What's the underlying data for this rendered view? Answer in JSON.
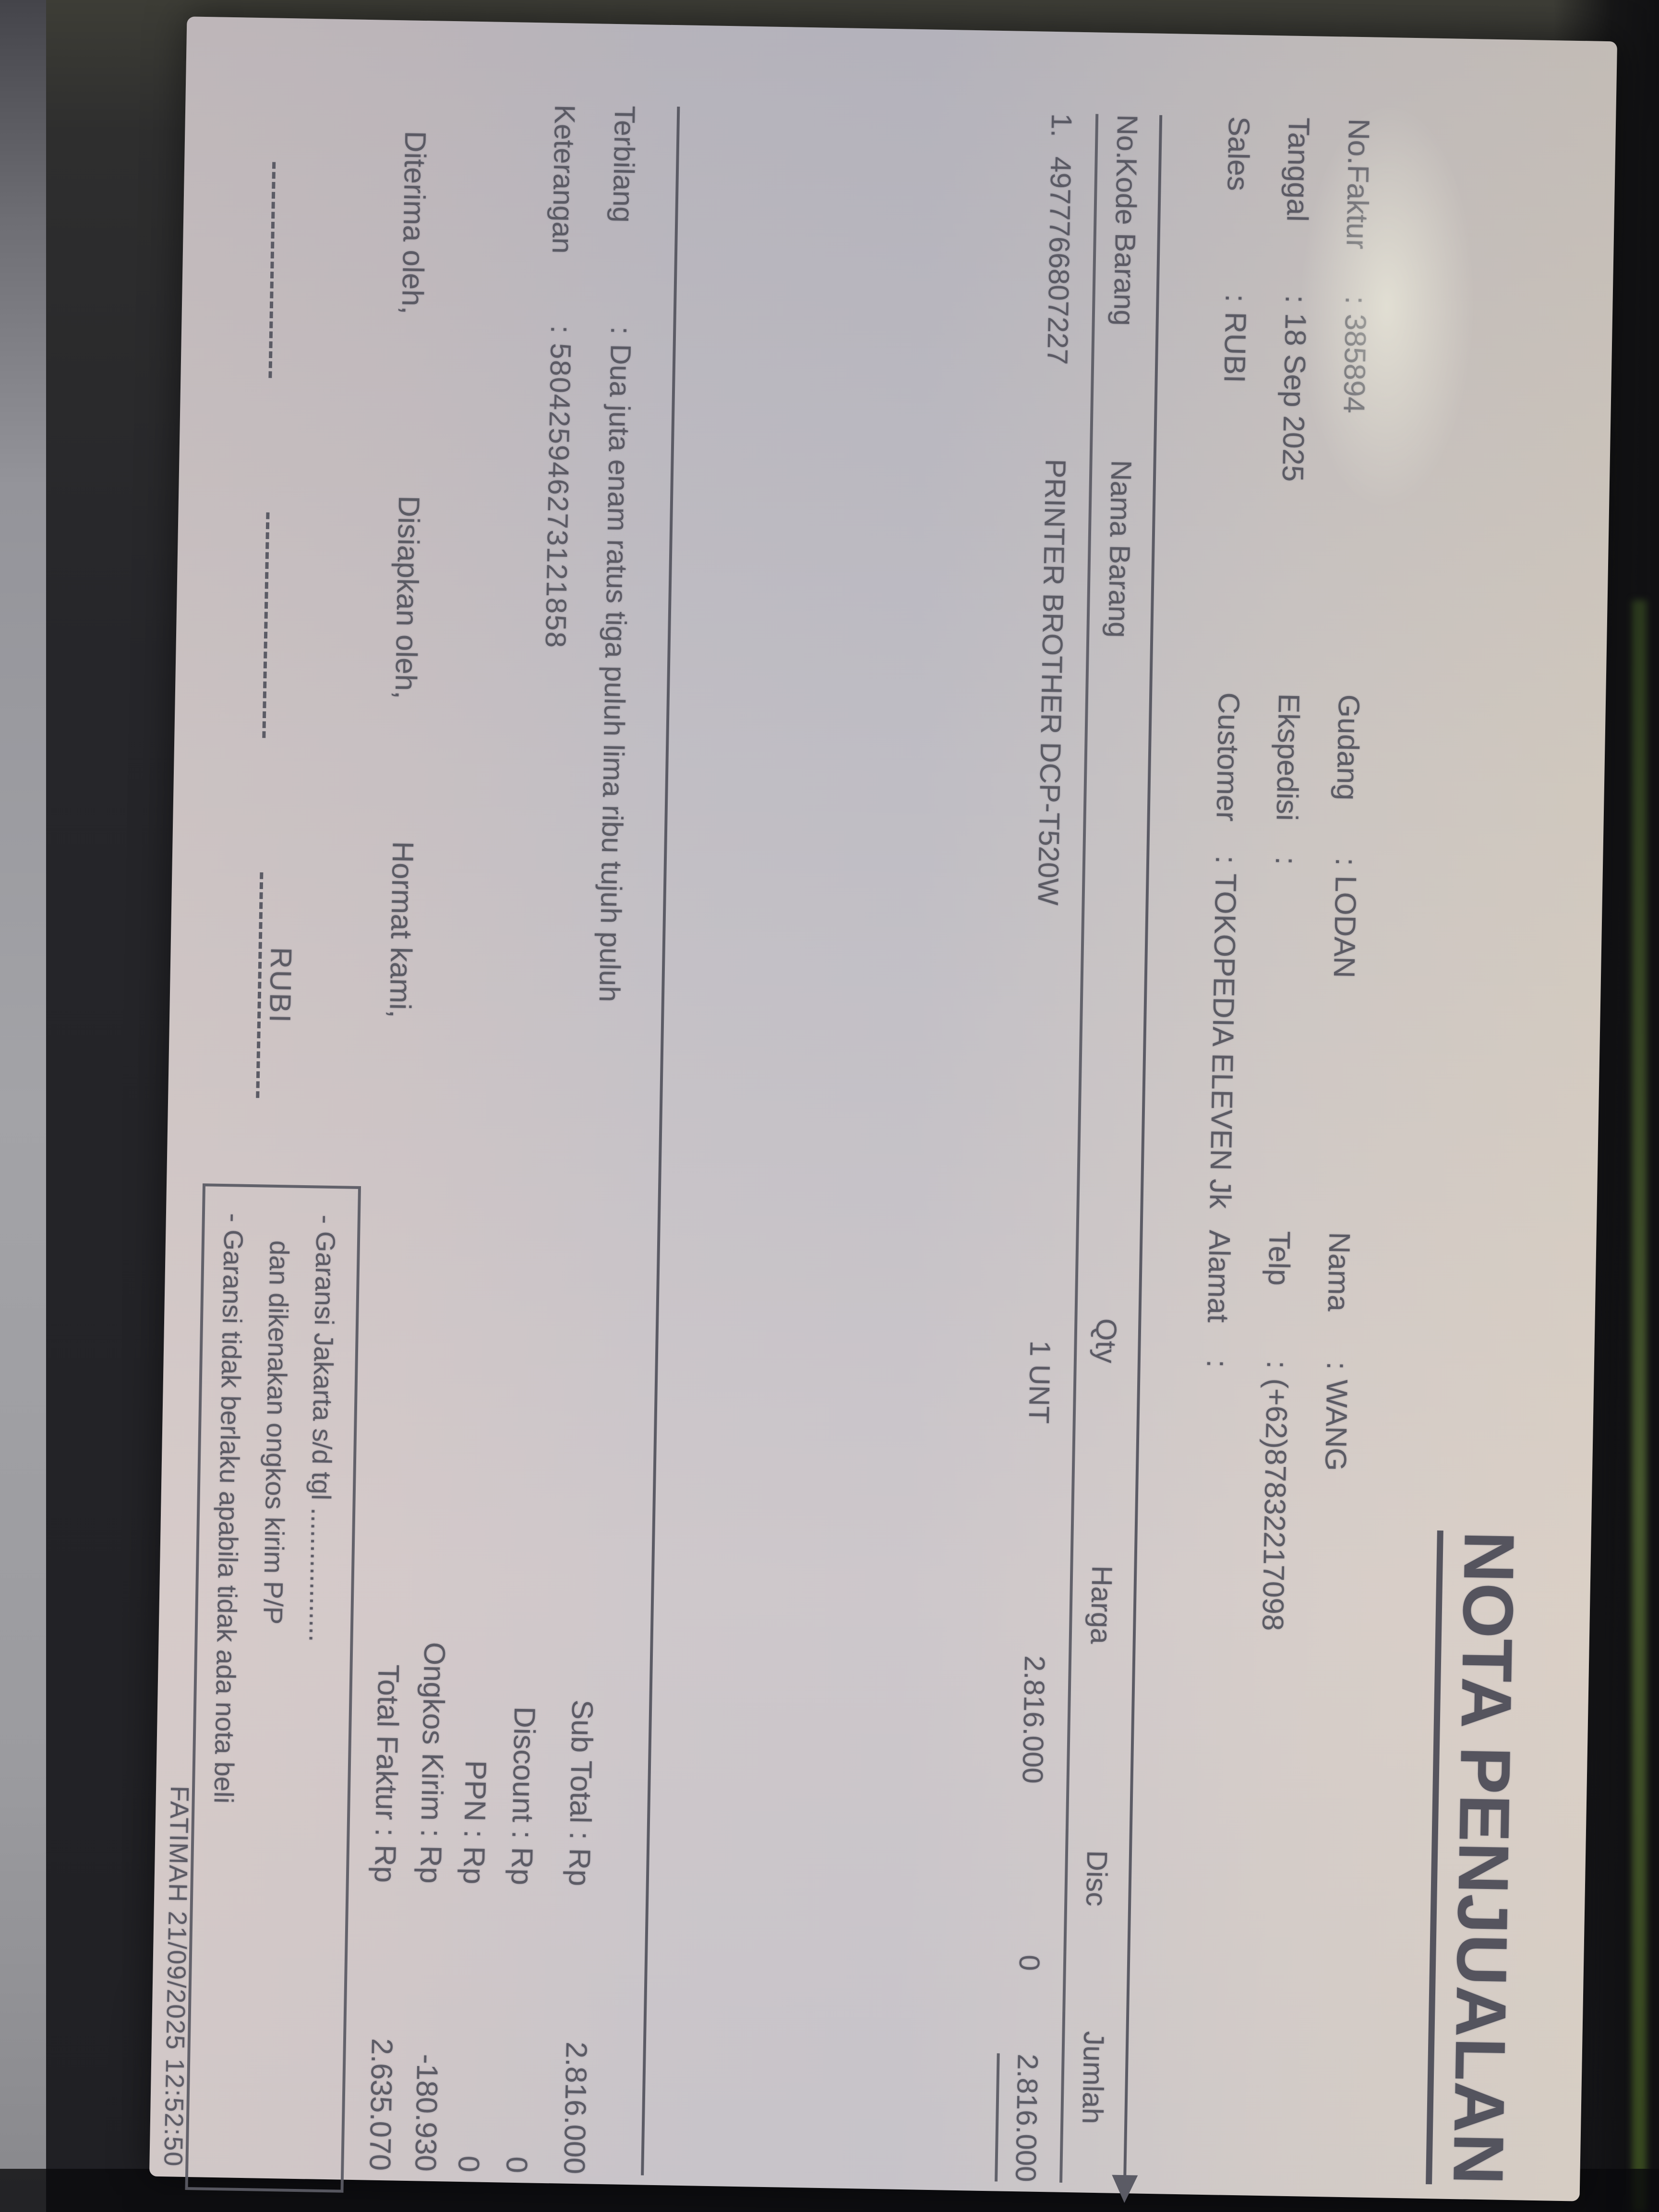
{
  "title": "NOTA PENJUALAN",
  "colon": ":",
  "colors": {
    "paper": "#c6c1c2",
    "ink": "#55555f",
    "background": "#26262a",
    "screen_edge_green": "#45582e"
  },
  "header": {
    "rows": [
      {
        "groups": [
          {
            "label": "No.Faktur",
            "value": "385894"
          },
          {
            "label": "Gudang",
            "value": "LODAN"
          },
          {
            "label": "Nama",
            "value": "WANG"
          }
        ]
      },
      {
        "groups": [
          {
            "label": "Tanggal",
            "value": "18 Sep 2025"
          },
          {
            "label": "Ekspedisi",
            "value": ""
          },
          {
            "label": "Telp",
            "value": "(+62)87832217098"
          }
        ]
      },
      {
        "groups": [
          {
            "label": "Sales",
            "value": "RUBI"
          },
          {
            "label": "Customer",
            "value": "TOKOPEDIA ELEVEN Jk"
          },
          {
            "label": "Alamat",
            "value": ""
          }
        ]
      }
    ]
  },
  "table": {
    "columns": [
      "No.",
      "Kode Barang",
      "Nama Barang",
      "Qty",
      "Harga",
      "Disc",
      "Jumlah"
    ],
    "rows": [
      {
        "no": "1.",
        "kode": "4977766807227",
        "nama": "PRINTER BROTHER DCP-T520W",
        "qty": "1 UNT",
        "harga": "2.816.000",
        "disc": "0",
        "jumlah": "2.816.000"
      }
    ]
  },
  "terbilang": {
    "label": "Terbilang",
    "value": "Dua juta enam ratus tiga puluh lima ribu tujuh puluh"
  },
  "keterangan": {
    "label": "Keterangan",
    "value": "580425946273121858"
  },
  "totals": {
    "rows": [
      {
        "label": "Sub Total : Rp",
        "value": "2.816.000"
      },
      {
        "label": "Discount : Rp",
        "value": "0"
      },
      {
        "label": "PPN : Rp",
        "value": "0"
      },
      {
        "label": "Ongkos Kirim : Rp",
        "value": "-180.930"
      },
      {
        "label": "Total Faktur : Rp",
        "value": "2.635.070"
      }
    ]
  },
  "signatures": {
    "labels": [
      "Diterima oleh,",
      "Disiapkan oleh,",
      "Hormat kami,"
    ],
    "name": "RUBI"
  },
  "notes": {
    "lines": [
      "- Garansi Jakarta s/d tgl ..................",
      "dan dikenakan ongkos kirim P/P",
      "- Garansi tidak berlaku apabila tidak ada nota beli"
    ]
  },
  "footer": {
    "printed_by": "FATIMAH 21/09/2025 12:52:50"
  }
}
